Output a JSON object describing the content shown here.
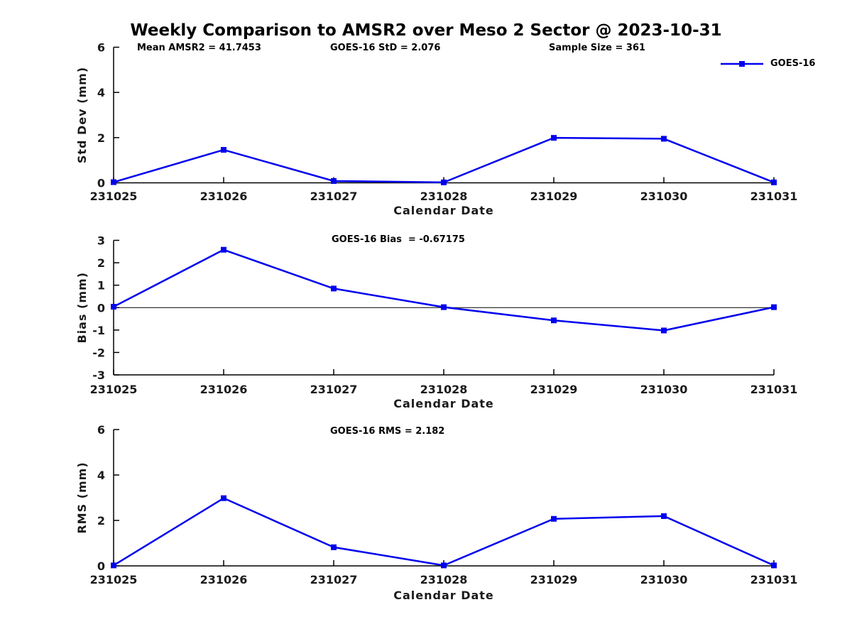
{
  "chart_data": {
    "type": "line",
    "figure_title": "Weekly Comparison to AMSR2 over Meso 2 Sector @ 2023-10-31",
    "x_categories": [
      "231025",
      "231026",
      "231027",
      "231028",
      "231029",
      "231030",
      "231031"
    ],
    "xlabel": "Calendar Date",
    "line_color": "#0000EE",
    "axis_color": "#000000",
    "label_color": "#1a1a1a",
    "grid": false,
    "legend": {
      "position": "top-right",
      "entries": [
        "GOES-16"
      ]
    },
    "header_annotations": [
      {
        "text": "Mean AMSR2 = 41.7453"
      },
      {
        "text": "GOES-16 StD = 2.076"
      },
      {
        "text": "Sample Size = 361"
      }
    ],
    "subplots": [
      {
        "name": "std-dev",
        "ylabel": "Std Dev (mm)",
        "ylim": [
          0,
          6
        ],
        "yticks": [
          0,
          2,
          4,
          6
        ],
        "zero_line": false,
        "annotation": "",
        "series": [
          {
            "name": "GOES-16",
            "values": [
              0.03,
              1.46,
              0.08,
              0.02,
              1.99,
              1.95,
              0.02
            ]
          }
        ]
      },
      {
        "name": "bias",
        "ylabel": "Bias (mm)",
        "ylim": [
          -3,
          3
        ],
        "yticks": [
          -3,
          -2,
          -1,
          0,
          1,
          2,
          3
        ],
        "zero_line": true,
        "annotation": "GOES-16 Bias  = -0.67175",
        "series": [
          {
            "name": "GOES-16",
            "values": [
              0.04,
              2.58,
              0.85,
              0.02,
              -0.57,
              -1.02,
              0.02
            ]
          }
        ]
      },
      {
        "name": "rms",
        "ylabel": "RMS (mm)",
        "ylim": [
          0,
          6
        ],
        "yticks": [
          0,
          2,
          4,
          6
        ],
        "zero_line": false,
        "annotation": "GOES-16 RMS = 2.182",
        "series": [
          {
            "name": "GOES-16",
            "values": [
              0.02,
              2.98,
              0.82,
              0.02,
              2.07,
              2.19,
              0.02
            ]
          }
        ]
      }
    ]
  }
}
